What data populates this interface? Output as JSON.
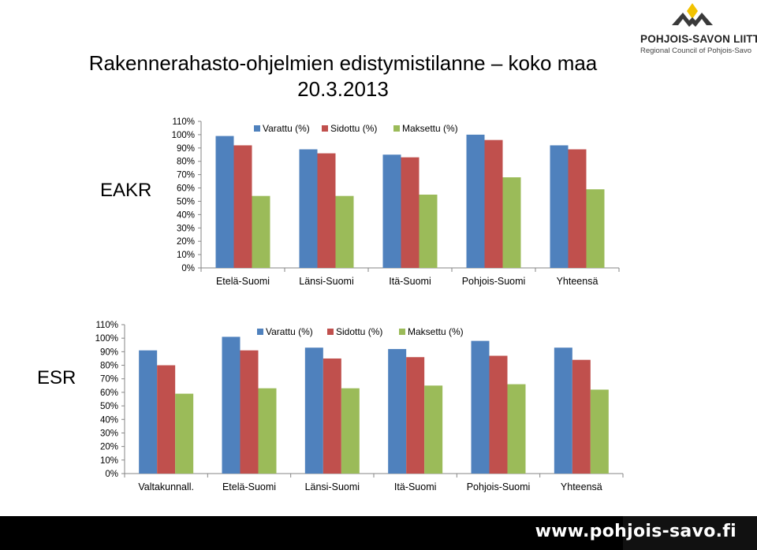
{
  "title": "Rakennerahasto-ohjelmien edistymistilanne – koko maa 20.3.2013",
  "logo": {
    "name": "POHJOIS-SAVON LIITTO",
    "subtitle": "Regional Council of Pohjois-Savo"
  },
  "footer": {
    "url": "www.pohjois-savo.fi"
  },
  "colors": {
    "varattu": "#4F81BD",
    "sidottu": "#C0504D",
    "maksettu": "#9BBB59",
    "axis": "#868686"
  },
  "chart_data": [
    {
      "type": "bar",
      "label": "EAKR",
      "categories": [
        "Etelä-Suomi",
        "Länsi-Suomi",
        "Itä-Suomi",
        "Pohjois-Suomi",
        "Yhteensä"
      ],
      "series": [
        {
          "name": "Varattu (%)",
          "values": [
            99,
            89,
            85,
            100,
            92
          ]
        },
        {
          "name": "Sidottu (%)",
          "values": [
            92,
            86,
            83,
            96,
            89
          ]
        },
        {
          "name": "Maksettu (%)",
          "values": [
            54,
            54,
            55,
            68,
            59
          ]
        }
      ],
      "y_ticks": [
        "110%",
        "100%",
        "90%",
        "80%",
        "70%",
        "60%",
        "50%",
        "40%",
        "30%",
        "20%",
        "10%",
        "0%"
      ],
      "ylim": [
        0,
        110
      ],
      "legend": "top",
      "grid": false
    },
    {
      "type": "bar",
      "label": "ESR",
      "categories": [
        "Valtakunnall.",
        "Etelä-Suomi",
        "Länsi-Suomi",
        "Itä-Suomi",
        "Pohjois-Suomi",
        "Yhteensä"
      ],
      "series": [
        {
          "name": "Varattu (%)",
          "values": [
            91,
            101,
            93,
            92,
            98,
            93
          ]
        },
        {
          "name": "Sidottu (%)",
          "values": [
            80,
            91,
            85,
            86,
            87,
            84
          ]
        },
        {
          "name": "Maksettu (%)",
          "values": [
            59,
            63,
            63,
            65,
            66,
            62
          ]
        }
      ],
      "y_ticks": [
        "110%",
        "100%",
        "90%",
        "80%",
        "70%",
        "60%",
        "50%",
        "40%",
        "30%",
        "20%",
        "10%",
        "0%"
      ],
      "ylim": [
        0,
        110
      ],
      "legend": "top",
      "grid": false
    }
  ]
}
